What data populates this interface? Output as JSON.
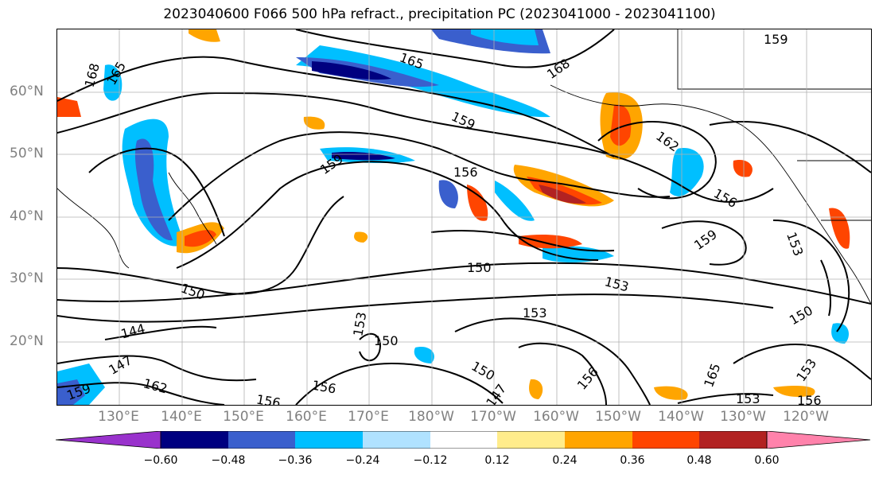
{
  "title": "2023040600 F066 500 hPa refract., precipitation PC (2023041000 - 2023041100)",
  "lat_labels": [
    "60°N",
    "50°N",
    "40°N",
    "30°N",
    "20°N"
  ],
  "lon_labels": [
    "130°E",
    "140°E",
    "150°E",
    "160°E",
    "170°E",
    "180°W",
    "170°W",
    "160°W",
    "150°W",
    "140°W",
    "130°W",
    "120°W"
  ],
  "colorbar": {
    "ticks": [
      "−0.60",
      "−0.48",
      "−0.36",
      "−0.24",
      "−0.12",
      "0.12",
      "0.24",
      "0.36",
      "0.48",
      "0.60"
    ],
    "colors": [
      "#9932cc",
      "#000080",
      "#3a5fcd",
      "#00bfff",
      "#b0e2ff",
      "#ffffff",
      "#ffec8b",
      "#ffa500",
      "#ff4500",
      "#b22222",
      "#ff82ab"
    ]
  },
  "contour_labels": [
    "165",
    "168",
    "165",
    "168",
    "159",
    "162",
    "159",
    "156",
    "159",
    "156",
    "159",
    "153",
    "150",
    "153",
    "150",
    "153",
    "150",
    "153",
    "150",
    "147",
    "156",
    "153",
    "153",
    "144",
    "147",
    "159",
    "162",
    "156",
    "156",
    "150",
    "165",
    "156"
  ]
}
